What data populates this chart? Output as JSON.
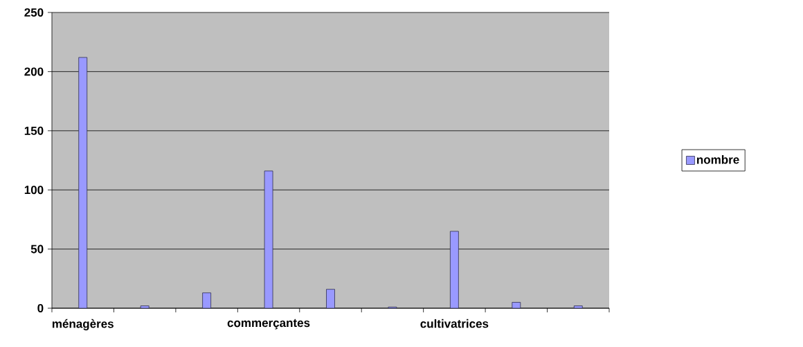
{
  "chart_data": {
    "type": "bar",
    "categories": [
      "ménagères",
      null,
      null,
      "commerçantes",
      null,
      null,
      "cultivatrices",
      null,
      null
    ],
    "series": [
      {
        "name": "nombre",
        "color": "#9999ff",
        "values": [
          212,
          2,
          13,
          116,
          16,
          1,
          65,
          5,
          2
        ]
      }
    ],
    "ylim": [
      0,
      250
    ],
    "yticks": [
      0,
      50,
      100,
      150,
      200,
      250
    ],
    "grid": "y",
    "legend": "right"
  }
}
